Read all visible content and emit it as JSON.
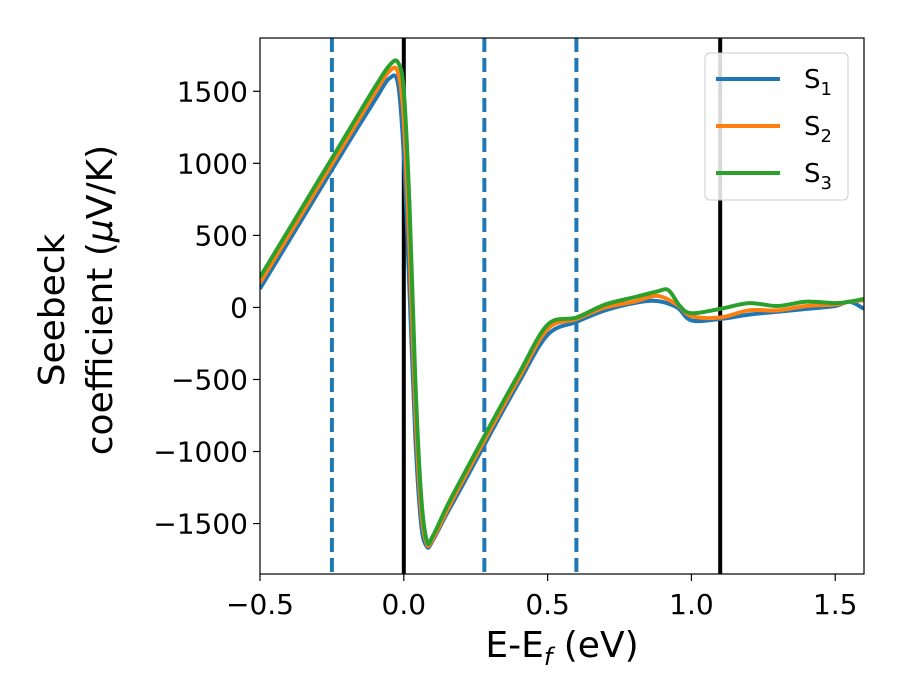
{
  "chart_data": {
    "type": "line",
    "xlabel": "E-E",
    "xlabel_sub": "f",
    "xlabel_unit": " (eV)",
    "ylabel_line1": "Seebeck",
    "ylabel_line2": "coefficient  (",
    "ylabel_mu": "μ",
    "ylabel_unit": "V/K)",
    "xlim": [
      -0.5,
      1.6
    ],
    "ylim": [
      -1850,
      1870
    ],
    "x_ticks": [
      -0.5,
      0.0,
      0.5,
      1.0,
      1.5
    ],
    "x_tick_labels": [
      "−0.5",
      "0.0",
      "0.5",
      "1.0",
      "1.5"
    ],
    "y_ticks": [
      -1500,
      -1000,
      -500,
      0,
      500,
      1000,
      1500
    ],
    "y_tick_labels": [
      "−1500",
      "−1000",
      "−500",
      "0",
      "500",
      "1000",
      "1500"
    ],
    "legend_position": "top-right",
    "grid": false,
    "vlines_dashed": [
      -0.25,
      0.28,
      0.6
    ],
    "vlines_solid": [
      0.0,
      1.1
    ],
    "vline_dashed_color": "#1f77b4",
    "vline_solid_color": "#000000",
    "series": [
      {
        "name": "S",
        "sub": "1",
        "color": "#1f77b4",
        "x": [
          -0.5,
          -0.4,
          -0.3,
          -0.2,
          -0.1,
          -0.05,
          -0.02,
          0.0,
          0.02,
          0.04,
          0.06,
          0.08,
          0.1,
          0.15,
          0.2,
          0.3,
          0.4,
          0.5,
          0.6,
          0.7,
          0.8,
          0.88,
          0.95,
          1.0,
          1.1,
          1.2,
          1.3,
          1.4,
          1.5,
          1.55,
          1.6
        ],
        "y": [
          130,
          460,
          790,
          1120,
          1440,
          1590,
          1550,
          1050,
          100,
          -900,
          -1500,
          -1660,
          -1620,
          -1430,
          -1250,
          -880,
          -520,
          -190,
          -100,
          -20,
          30,
          45,
          0,
          -90,
          -80,
          -50,
          -30,
          -10,
          10,
          40,
          -10
        ]
      },
      {
        "name": "S",
        "sub": "2",
        "color": "#ff7f0e",
        "x": [
          -0.5,
          -0.4,
          -0.3,
          -0.2,
          -0.1,
          -0.05,
          -0.02,
          0.0,
          0.02,
          0.04,
          0.06,
          0.08,
          0.1,
          0.15,
          0.2,
          0.3,
          0.4,
          0.5,
          0.6,
          0.7,
          0.8,
          0.88,
          0.95,
          1.0,
          1.1,
          1.2,
          1.3,
          1.4,
          1.5,
          1.55,
          1.6
        ],
        "y": [
          170,
          500,
          830,
          1160,
          1490,
          1640,
          1630,
          1300,
          400,
          -700,
          -1400,
          -1640,
          -1610,
          -1410,
          -1220,
          -850,
          -490,
          -150,
          -80,
          0,
          40,
          80,
          20,
          -60,
          -70,
          -20,
          -20,
          10,
          20,
          40,
          50
        ]
      },
      {
        "name": "S",
        "sub": "3",
        "color": "#2ca02c",
        "x": [
          -0.5,
          -0.4,
          -0.3,
          -0.2,
          -0.1,
          -0.05,
          -0.02,
          0.0,
          0.02,
          0.04,
          0.06,
          0.08,
          0.1,
          0.15,
          0.2,
          0.3,
          0.4,
          0.5,
          0.6,
          0.7,
          0.8,
          0.88,
          0.92,
          0.96,
          1.0,
          1.1,
          1.2,
          1.3,
          1.4,
          1.5,
          1.55,
          1.6
        ],
        "y": [
          210,
          540,
          870,
          1200,
          1530,
          1680,
          1700,
          1500,
          700,
          -500,
          -1300,
          -1620,
          -1590,
          -1380,
          -1190,
          -820,
          -460,
          -120,
          -70,
          20,
          70,
          110,
          120,
          10,
          -40,
          -10,
          30,
          10,
          40,
          30,
          40,
          60
        ]
      }
    ]
  }
}
